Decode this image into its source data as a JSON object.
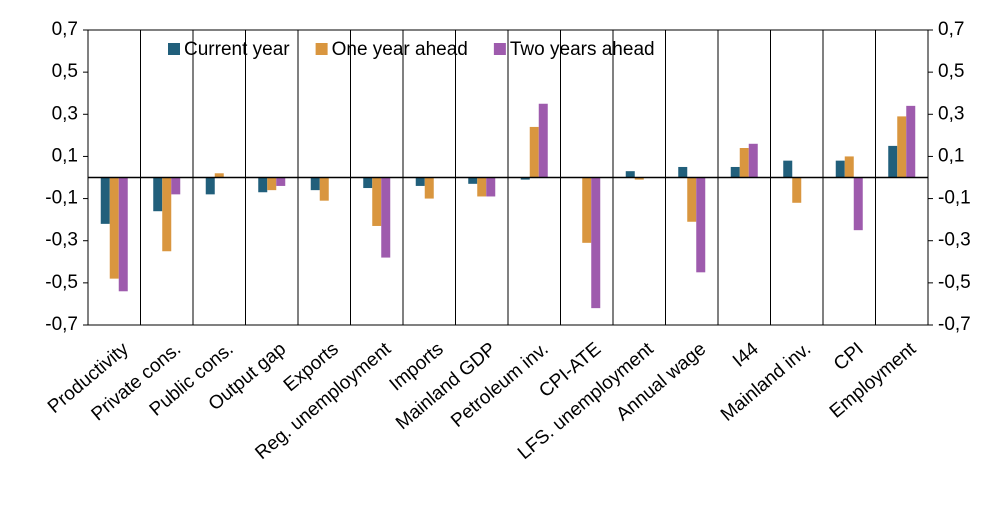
{
  "chart_data": {
    "type": "bar",
    "categories": [
      "Productivity",
      "Private cons.",
      "Public cons.",
      "Output gap",
      "Exports",
      "Reg. unemployment",
      "Imports",
      "Mainland GDP",
      "Petroleum inv.",
      "CPI-ATE",
      "LFS. unemployment",
      "Annual wage",
      "I44",
      "Mainland inv.",
      "CPI",
      "Employment"
    ],
    "series": [
      {
        "name": "Current year",
        "color": "#215f7b",
        "values": [
          -0.22,
          -0.16,
          -0.08,
          -0.07,
          -0.06,
          -0.05,
          -0.04,
          -0.03,
          -0.01,
          0,
          0.03,
          0.05,
          0.05,
          0.08,
          0.08,
          0.15
        ]
      },
      {
        "name": "One year ahead",
        "color": "#d9963f",
        "values": [
          -0.48,
          -0.35,
          0.02,
          -0.06,
          -0.11,
          -0.23,
          -0.1,
          -0.09,
          0.24,
          -0.31,
          -0.01,
          -0.21,
          0.14,
          -0.12,
          0.1,
          0.29
        ]
      },
      {
        "name": "Two years ahead",
        "color": "#9e5bad",
        "values": [
          -0.54,
          -0.08,
          0,
          -0.04,
          0,
          -0.38,
          0,
          -0.09,
          0.35,
          -0.62,
          0,
          -0.45,
          0.16,
          0,
          -0.25,
          0.34
        ]
      }
    ],
    "ylim": [
      -0.7,
      0.7
    ],
    "yticks": [
      {
        "value": -0.7,
        "label": "-0,7"
      },
      {
        "value": -0.5,
        "label": "-0,5"
      },
      {
        "value": -0.3,
        "label": "-0,3"
      },
      {
        "value": -0.1,
        "label": "-0,1"
      },
      {
        "value": 0.1,
        "label": "0,1"
      },
      {
        "value": 0.3,
        "label": "0,3"
      },
      {
        "value": 0.5,
        "label": "0,5"
      },
      {
        "value": 0.7,
        "label": "0,7"
      }
    ],
    "y2lim": [
      -0.7,
      0.7
    ],
    "y2ticks": [
      {
        "value": -0.7,
        "label": "-0,7"
      },
      {
        "value": -0.5,
        "label": "-0,5"
      },
      {
        "value": -0.3,
        "label": "-0,3"
      },
      {
        "value": -0.1,
        "label": "-0,1"
      },
      {
        "value": 0.1,
        "label": "0,1"
      },
      {
        "value": 0.3,
        "label": "0,3"
      },
      {
        "value": 0.5,
        "label": "0,5"
      },
      {
        "value": 0.7,
        "label": "0,7"
      }
    ],
    "legend": "top"
  }
}
